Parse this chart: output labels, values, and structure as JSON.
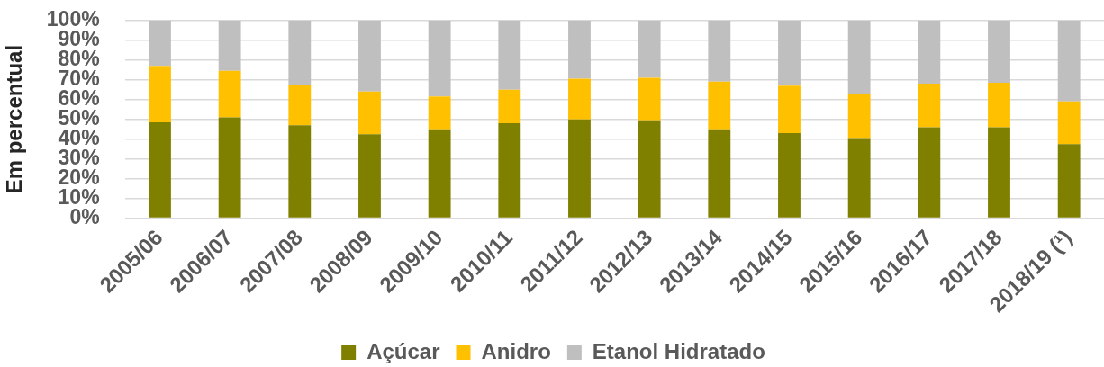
{
  "chart_data": {
    "type": "bar",
    "stacked": true,
    "ylabel": "Em percentual",
    "categories": [
      "2005/06",
      "2006/07",
      "2007/08",
      "2008/09",
      "2009/10",
      "2010/11",
      "2011/12",
      "2012/13",
      "2013/14",
      "2014/15",
      "2015/16",
      "2016/17",
      "2017/18",
      "2018/19 (¹)"
    ],
    "series": [
      {
        "name": "Açúcar",
        "color": "#808000",
        "values": [
          48.5,
          51,
          47,
          42.5,
          45,
          48,
          50,
          49.5,
          45,
          43,
          40.5,
          46,
          46,
          37.5
        ]
      },
      {
        "name": "Anidro",
        "color": "#ffc000",
        "values": [
          28.5,
          23.5,
          20.5,
          21.5,
          16.5,
          17,
          20.5,
          21.5,
          24,
          24,
          22.5,
          22,
          22.5,
          21.5
        ]
      },
      {
        "name": "Etanol Hidratado",
        "color": "#bfbfbf",
        "values": [
          23,
          25.5,
          32.5,
          36,
          38.5,
          35,
          29.5,
          29,
          31,
          33,
          37,
          32,
          31.5,
          41
        ]
      }
    ],
    "ylim": [
      0,
      100
    ],
    "yticks": [
      {
        "value": 0,
        "label": "0%"
      },
      {
        "value": 10,
        "label": "10%"
      },
      {
        "value": 20,
        "label": "20%"
      },
      {
        "value": 30,
        "label": "30%"
      },
      {
        "value": 40,
        "label": "40%"
      },
      {
        "value": 50,
        "label": "50%"
      },
      {
        "value": 60,
        "label": "60%"
      },
      {
        "value": 70,
        "label": "70%"
      },
      {
        "value": 80,
        "label": "80%"
      },
      {
        "value": 90,
        "label": "90%"
      },
      {
        "value": 100,
        "label": "100%"
      }
    ],
    "grid": "y",
    "legend": "bottom"
  }
}
